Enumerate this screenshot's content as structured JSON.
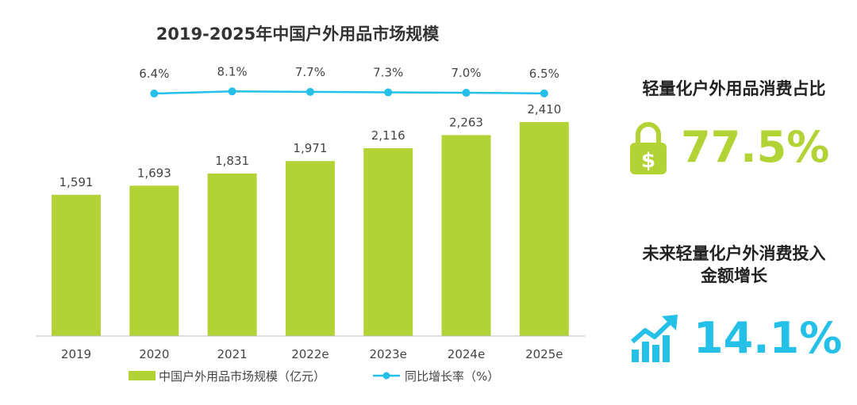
{
  "chart_data": {
    "type": "bar",
    "title": "2019-2025年中国户外用品市场规模",
    "categories": [
      "2019",
      "2020",
      "2021",
      "2022e",
      "2023e",
      "2024e",
      "2025e"
    ],
    "series": [
      {
        "name": "中国户外用品市场规模（亿元）",
        "type": "bar",
        "color": "#b2d235",
        "values": [
          1591,
          1693,
          1831,
          1971,
          2116,
          2263,
          2410
        ],
        "labels": [
          "1,591",
          "1,693",
          "1,831",
          "1,971",
          "2,116",
          "2,263",
          "2,410"
        ]
      },
      {
        "name": "同比增长率（%）",
        "type": "line",
        "color": "#25c0e8",
        "x": [
          "2020",
          "2021",
          "2022e",
          "2023e",
          "2024e",
          "2025e"
        ],
        "values": [
          6.4,
          8.1,
          7.7,
          7.3,
          7.0,
          6.5
        ],
        "labels": [
          "6.4%",
          "8.1%",
          "7.7%",
          "7.3%",
          "7.0%",
          "6.5%"
        ]
      }
    ],
    "ylim": [
      0,
      2600
    ],
    "xlabel": "",
    "ylabel": "",
    "grid": false,
    "legend": "bottom"
  },
  "side": {
    "kpi1": {
      "title": "轻量化户外用品消费占比",
      "value": "77.5%",
      "icon": "lock-dollar-icon",
      "color": "#b2d235"
    },
    "kpi2": {
      "title_line1": "未来轻量化户外消费投入",
      "title_line2": "金额增长",
      "value": "14.1%",
      "icon": "growth-chart-icon",
      "color": "#25c0e8"
    }
  }
}
